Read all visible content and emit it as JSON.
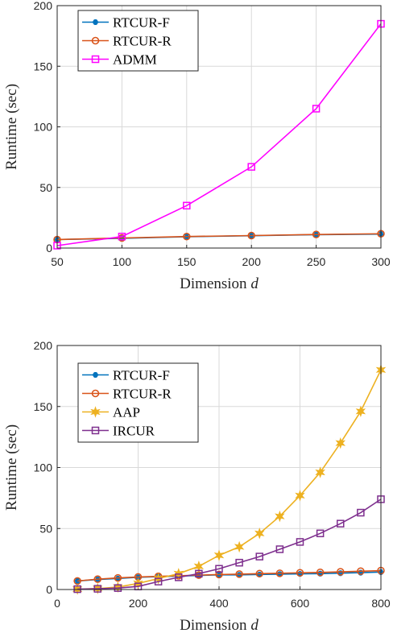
{
  "colors": {
    "rtcur_f": "#0072BD",
    "rtcur_r": "#D95319",
    "admm": "#FF00FF",
    "aap": "#EDB120",
    "ircur": "#7E2F8E"
  },
  "chart_data": [
    {
      "type": "line",
      "title": "",
      "xlabel": "Dimension",
      "xlabel_var": "d",
      "ylabel": "Runtime (sec)",
      "xlim": [
        50,
        300
      ],
      "ylim": [
        0,
        200
      ],
      "xticks": [
        50,
        100,
        150,
        200,
        250,
        300
      ],
      "yticks": [
        0,
        50,
        100,
        150,
        200
      ],
      "grid": true,
      "legend_position": "top-left",
      "x": [
        50,
        100,
        150,
        200,
        250,
        300
      ],
      "series": [
        {
          "name": "RTCUR-F",
          "marker": "asterisk",
          "color": "#0072BD",
          "values": [
            7,
            8,
            9.3,
            10.2,
            11,
            11.5
          ]
        },
        {
          "name": "RTCUR-R",
          "marker": "circle",
          "color": "#D95319",
          "values": [
            7,
            8.3,
            9.5,
            10.3,
            11.2,
            11.8
          ]
        },
        {
          "name": "ADMM",
          "marker": "square",
          "color": "#FF00FF",
          "values": [
            2,
            9.5,
            35,
            67,
            115,
            185
          ]
        }
      ]
    },
    {
      "type": "line",
      "title": "",
      "xlabel": "Dimension",
      "xlabel_var": "d",
      "ylabel": "Runtime (sec)",
      "xlim": [
        0,
        800
      ],
      "ylim": [
        0,
        200
      ],
      "xticks": [
        0,
        200,
        400,
        600,
        800
      ],
      "yticks": [
        0,
        50,
        100,
        150,
        200
      ],
      "grid": true,
      "legend_position": "top-left",
      "x": [
        50,
        100,
        150,
        200,
        250,
        300,
        350,
        400,
        450,
        500,
        550,
        600,
        650,
        700,
        750,
        800
      ],
      "series": [
        {
          "name": "RTCUR-F",
          "marker": "asterisk",
          "color": "#0072BD",
          "values": [
            7,
            8.2,
            9,
            10,
            10.5,
            11,
            11.5,
            12,
            12,
            12.3,
            12.6,
            12.8,
            13,
            13.4,
            13.8,
            14.3
          ]
        },
        {
          "name": "RTCUR-R",
          "marker": "circle",
          "color": "#D95319",
          "values": [
            7,
            8.5,
            9.5,
            10.3,
            10.8,
            11.3,
            11.8,
            12.3,
            12.6,
            13,
            13.3,
            13.7,
            14,
            14.5,
            15,
            15.5
          ]
        },
        {
          "name": "AAP",
          "marker": "hexagram",
          "color": "#EDB120",
          "values": [
            0.3,
            0.8,
            2,
            5,
            9,
            13,
            19,
            28,
            35,
            46,
            60,
            77,
            96,
            120,
            146,
            180
          ]
        },
        {
          "name": "IRCUR",
          "marker": "square",
          "color": "#7E2F8E",
          "values": [
            0.3,
            0.6,
            1.2,
            2.5,
            6.5,
            10,
            13,
            17,
            22,
            27,
            33,
            39,
            46,
            54,
            63,
            74
          ]
        }
      ]
    }
  ]
}
